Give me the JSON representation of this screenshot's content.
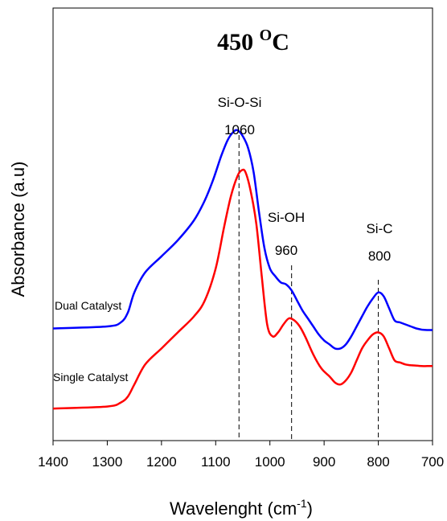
{
  "chart_data": {
    "type": "line",
    "title": {
      "main": "450 ",
      "superscript": "O",
      "suffix": "C"
    },
    "xlabel": {
      "main": "Wavelenght (cm",
      "superscript": "-1",
      "suffix": ")"
    },
    "ylabel": "Absorbance (a.u)",
    "xlim": [
      1400,
      700
    ],
    "x_reversed": true,
    "x_ticks": [
      {
        "value": 1400,
        "label": "1400"
      },
      {
        "value": 1300,
        "label": "1300"
      },
      {
        "value": 1200,
        "label": "1200"
      },
      {
        "value": 1100,
        "label": "1100"
      },
      {
        "value": 1000,
        "label": "1000"
      },
      {
        "value": 900,
        "label": "900"
      },
      {
        "value": 800,
        "label": "800"
      },
      {
        "value": 700,
        "label": "700"
      }
    ],
    "ylim": [
      0,
      1
    ],
    "y_ticks_shown": false,
    "grid": false,
    "series": [
      {
        "name": "Dual Catalyst",
        "color": "#0000ff",
        "x": [
          1400,
          1300,
          1275,
          1262,
          1250,
          1230,
          1200,
          1170,
          1140,
          1120,
          1105,
          1090,
          1078,
          1068,
          1060,
          1050,
          1040,
          1030,
          1020,
          1010,
          1000,
          990,
          980,
          970,
          960,
          950,
          940,
          930,
          920,
          910,
          900,
          890,
          880,
          870,
          860,
          850,
          840,
          830,
          820,
          810,
          800,
          790,
          780,
          770,
          760,
          750,
          740,
          730,
          720,
          710,
          700
        ],
        "y": [
          0.24,
          0.245,
          0.255,
          0.28,
          0.33,
          0.38,
          0.42,
          0.46,
          0.51,
          0.56,
          0.61,
          0.67,
          0.71,
          0.73,
          0.735,
          0.72,
          0.69,
          0.63,
          0.53,
          0.44,
          0.39,
          0.37,
          0.355,
          0.35,
          0.335,
          0.31,
          0.285,
          0.265,
          0.245,
          0.225,
          0.21,
          0.2,
          0.19,
          0.19,
          0.2,
          0.22,
          0.245,
          0.27,
          0.295,
          0.315,
          0.33,
          0.32,
          0.29,
          0.26,
          0.255,
          0.25,
          0.245,
          0.24,
          0.237,
          0.236,
          0.236
        ]
      },
      {
        "name": "Single Catalyst",
        "color": "#ff0000",
        "x": [
          1400,
          1300,
          1275,
          1262,
          1250,
          1230,
          1200,
          1170,
          1140,
          1120,
          1100,
          1085,
          1072,
          1060,
          1052,
          1045,
          1035,
          1025,
          1015,
          1005,
          995,
          985,
          975,
          965,
          955,
          945,
          935,
          920,
          905,
          890,
          880,
          870,
          860,
          850,
          840,
          830,
          820,
          810,
          800,
          790,
          780,
          770,
          760,
          750,
          740,
          730,
          720,
          710,
          700
        ],
        "y": [
          0.04,
          0.045,
          0.055,
          0.07,
          0.1,
          0.15,
          0.19,
          0.23,
          0.27,
          0.31,
          0.39,
          0.49,
          0.57,
          0.62,
          0.635,
          0.63,
          0.58,
          0.5,
          0.37,
          0.25,
          0.22,
          0.23,
          0.25,
          0.265,
          0.26,
          0.245,
          0.22,
          0.175,
          0.14,
          0.12,
          0.105,
          0.1,
          0.11,
          0.13,
          0.16,
          0.19,
          0.21,
          0.225,
          0.23,
          0.22,
          0.19,
          0.16,
          0.155,
          0.15,
          0.148,
          0.147,
          0.146,
          0.146,
          0.146
        ]
      }
    ],
    "series_labels": [
      {
        "series": 0,
        "text": "Dual Catalyst"
      },
      {
        "series": 1,
        "text": "Single Catalyst"
      }
    ],
    "annotations": [
      {
        "name": "si-o-si",
        "label": "Si-O-Si",
        "value_label": "1060",
        "x": 1057
      },
      {
        "name": "si-oh",
        "label": "Si-OH",
        "value_label": "960",
        "x": 960
      },
      {
        "name": "si-c",
        "label": "Si-C",
        "value_label": "800",
        "x": 800
      }
    ]
  }
}
